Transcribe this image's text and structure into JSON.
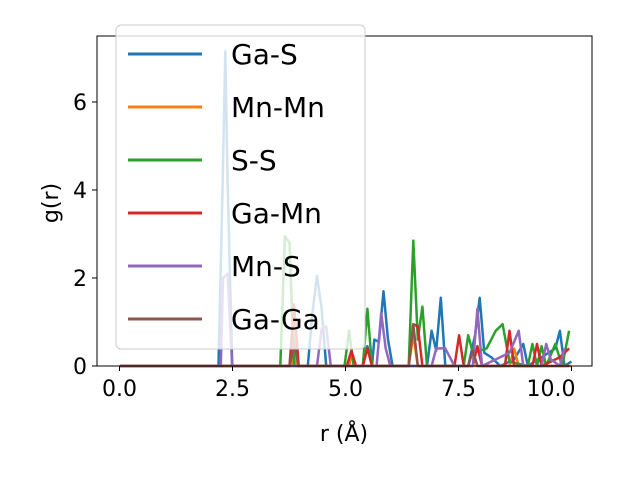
{
  "chart_data": {
    "type": "line",
    "xlabel": "r (Å)",
    "ylabel": "g(r)",
    "xlim": [
      -0.5,
      10.3
    ],
    "ylim": [
      0,
      7.5
    ],
    "x_ticks": [
      "0.0",
      "2.5",
      "5.0",
      "7.5",
      "10.0"
    ],
    "y_ticks": [
      "0",
      "2",
      "4",
      "6"
    ],
    "grid": false,
    "legend_position": "top-left",
    "series": [
      {
        "name": "Ga-S",
        "color": "#1f77b4",
        "points": [
          [
            0,
            0
          ],
          [
            2.15,
            0
          ],
          [
            2.25,
            4.5
          ],
          [
            2.3,
            7.15
          ],
          [
            2.35,
            4.2
          ],
          [
            2.45,
            0
          ],
          [
            4.1,
            0
          ],
          [
            4.2,
            1.2
          ],
          [
            4.3,
            2.05
          ],
          [
            4.4,
            1.3
          ],
          [
            4.5,
            0
          ],
          [
            5.3,
            0
          ],
          [
            5.4,
            0.45
          ],
          [
            5.5,
            0
          ],
          [
            5.55,
            0.6
          ],
          [
            5.65,
            0.55
          ],
          [
            5.75,
            1.7
          ],
          [
            5.85,
            0.6
          ],
          [
            5.95,
            0
          ],
          [
            6.7,
            0
          ],
          [
            6.8,
            0.8
          ],
          [
            6.9,
            0.35
          ],
          [
            7.0,
            1.55
          ],
          [
            7.1,
            0
          ],
          [
            7.6,
            0
          ],
          [
            7.75,
            0.7
          ],
          [
            7.85,
            1.55
          ],
          [
            7.95,
            0.3
          ],
          [
            8.1,
            0.2
          ],
          [
            8.3,
            0
          ],
          [
            8.6,
            0.15
          ],
          [
            8.8,
            0.5
          ],
          [
            8.9,
            0
          ],
          [
            9.5,
            0.4
          ],
          [
            9.6,
            0.8
          ],
          [
            9.7,
            0
          ],
          [
            9.85,
            0.1
          ]
        ]
      },
      {
        "name": "Mn-Mn",
        "color": "#ff7f0e",
        "points": [
          [
            0,
            0
          ],
          [
            3.75,
            0
          ],
          [
            3.8,
            1.0
          ],
          [
            3.85,
            0
          ],
          [
            5.0,
            0
          ],
          [
            5.05,
            0.3
          ],
          [
            5.1,
            0
          ],
          [
            6.3,
            0
          ],
          [
            6.4,
            0.7
          ],
          [
            6.5,
            0
          ],
          [
            8.5,
            0
          ],
          [
            8.6,
            0.4
          ],
          [
            8.7,
            0
          ],
          [
            9.85,
            0
          ]
        ]
      },
      {
        "name": "S-S",
        "color": "#2ca02c",
        "points": [
          [
            0,
            0
          ],
          [
            3.5,
            0
          ],
          [
            3.6,
            2.95
          ],
          [
            3.7,
            2.8
          ],
          [
            3.8,
            0
          ],
          [
            4.9,
            0
          ],
          [
            5.0,
            0.8
          ],
          [
            5.1,
            0
          ],
          [
            5.3,
            0
          ],
          [
            5.4,
            1.3
          ],
          [
            5.5,
            0
          ],
          [
            6.3,
            0
          ],
          [
            6.4,
            2.85
          ],
          [
            6.5,
            0.6
          ],
          [
            6.6,
            1.35
          ],
          [
            6.7,
            0
          ],
          [
            7.5,
            0
          ],
          [
            7.6,
            0.7
          ],
          [
            7.7,
            0.3
          ],
          [
            8.0,
            0.4
          ],
          [
            8.2,
            0.8
          ],
          [
            8.35,
            0.95
          ],
          [
            8.5,
            0.1
          ],
          [
            8.9,
            0
          ],
          [
            9.0,
            0.5
          ],
          [
            9.1,
            0
          ],
          [
            9.2,
            0.45
          ],
          [
            9.3,
            0
          ],
          [
            9.5,
            0.5
          ],
          [
            9.65,
            0
          ],
          [
            9.8,
            0.8
          ]
        ]
      },
      {
        "name": "Ga-Mn",
        "color": "#d62728",
        "points": [
          [
            0,
            0
          ],
          [
            3.7,
            0
          ],
          [
            3.8,
            1.4
          ],
          [
            3.9,
            0
          ],
          [
            4.95,
            0
          ],
          [
            5.05,
            0.35
          ],
          [
            5.15,
            0
          ],
          [
            5.3,
            0
          ],
          [
            5.4,
            0.4
          ],
          [
            5.5,
            0
          ],
          [
            6.3,
            0
          ],
          [
            6.4,
            0.95
          ],
          [
            6.5,
            0.9
          ],
          [
            6.6,
            0
          ],
          [
            7.3,
            0
          ],
          [
            7.4,
            0.7
          ],
          [
            7.5,
            0
          ],
          [
            7.7,
            0
          ],
          [
            7.8,
            0.45
          ],
          [
            7.9,
            0
          ],
          [
            8.4,
            0
          ],
          [
            8.5,
            0.8
          ],
          [
            8.6,
            0
          ],
          [
            9.0,
            0
          ],
          [
            9.1,
            0.5
          ],
          [
            9.2,
            0
          ],
          [
            9.6,
            0.2
          ],
          [
            9.8,
            0.4
          ]
        ]
      },
      {
        "name": "Mn-S",
        "color": "#9467bd",
        "points": [
          [
            0,
            0
          ],
          [
            2.2,
            0
          ],
          [
            2.25,
            2.0
          ],
          [
            2.35,
            2.1
          ],
          [
            2.45,
            0
          ],
          [
            4.3,
            0
          ],
          [
            4.4,
            0.85
          ],
          [
            4.5,
            0.9
          ],
          [
            4.6,
            0
          ],
          [
            5.6,
            0
          ],
          [
            5.7,
            1.2
          ],
          [
            5.8,
            0.4
          ],
          [
            5.9,
            0
          ],
          [
            6.8,
            0
          ],
          [
            6.9,
            0.4
          ],
          [
            7.1,
            0.4
          ],
          [
            7.3,
            0
          ],
          [
            7.7,
            0
          ],
          [
            7.8,
            1.3
          ],
          [
            7.9,
            0
          ],
          [
            8.5,
            0.3
          ],
          [
            8.7,
            0.8
          ],
          [
            8.8,
            0
          ],
          [
            9.2,
            0
          ],
          [
            9.3,
            0.5
          ],
          [
            9.4,
            0.15
          ],
          [
            9.6,
            0
          ],
          [
            9.7,
            0.4
          ]
        ]
      },
      {
        "name": "Ga-Ga",
        "color": "#8c564b",
        "points": [
          [
            0,
            0
          ],
          [
            3.7,
            0
          ],
          [
            3.8,
            0.5
          ],
          [
            3.9,
            0
          ],
          [
            6.3,
            0
          ],
          [
            6.4,
            0.95
          ],
          [
            6.5,
            0
          ],
          [
            7.6,
            0
          ],
          [
            7.7,
            0.35
          ],
          [
            7.8,
            0
          ],
          [
            9.8,
            0
          ]
        ]
      }
    ]
  }
}
